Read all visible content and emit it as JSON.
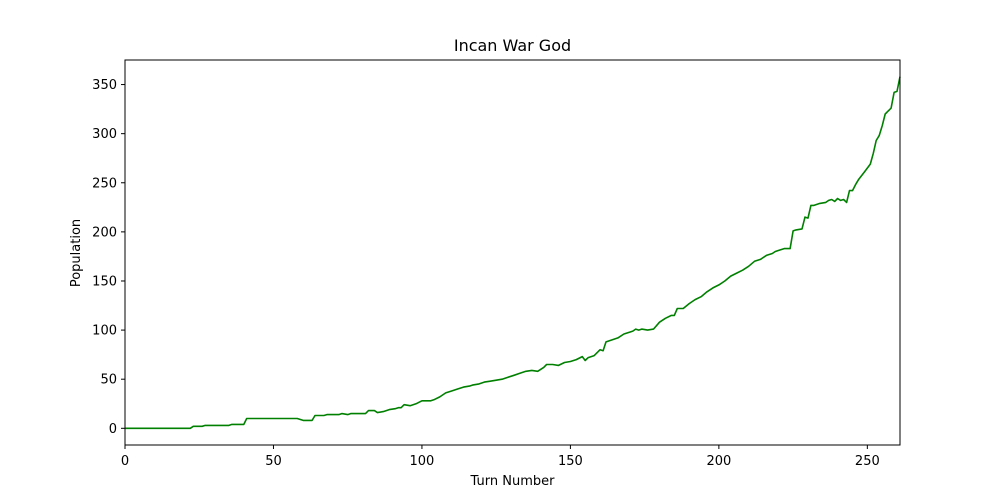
{
  "chart_data": {
    "type": "line",
    "title": "Incan War God",
    "xlabel": "Turn Number",
    "ylabel": "Population",
    "xlim": [
      0,
      261
    ],
    "ylim": [
      -17,
      375
    ],
    "xticks": [
      0,
      50,
      100,
      150,
      200,
      250
    ],
    "yticks": [
      0,
      50,
      100,
      150,
      200,
      250,
      300,
      350
    ],
    "grid": false,
    "legend": "none",
    "series": [
      {
        "color": "#008000",
        "x": [
          0,
          22,
          23,
          26,
          27,
          35,
          36,
          40,
          41,
          58,
          60,
          63,
          64,
          67,
          68,
          72,
          73,
          75,
          76,
          81,
          82,
          84,
          85,
          87,
          89,
          91,
          92,
          93,
          94,
          96,
          98,
          100,
          103,
          104,
          106,
          108,
          110,
          112,
          114,
          116,
          117,
          119,
          121,
          123,
          125,
          127,
          129,
          131,
          133,
          135,
          137,
          139,
          141,
          142,
          144,
          146,
          148,
          150,
          152,
          154,
          155,
          156,
          158,
          160,
          161,
          162,
          164,
          166,
          168,
          170,
          171,
          172,
          173,
          174,
          176,
          178,
          180,
          182,
          184,
          185,
          186,
          188,
          190,
          192,
          194,
          196,
          198,
          200,
          202,
          204,
          206,
          208,
          210,
          212,
          214,
          216,
          218,
          219,
          220,
          222,
          224,
          225,
          226,
          228,
          229,
          230,
          231,
          232,
          234,
          236,
          237,
          238,
          239,
          240,
          241,
          242,
          243,
          244,
          245,
          246,
          247,
          249,
          251,
          252,
          253,
          254,
          255,
          256,
          257,
          258,
          259,
          260,
          261
        ],
        "y": [
          0,
          0,
          2,
          2,
          3,
          3,
          4,
          4,
          10,
          10,
          8,
          8,
          13,
          13,
          14,
          14,
          15,
          14,
          15,
          15,
          18,
          18,
          16,
          17,
          19,
          20,
          21,
          21,
          24,
          23,
          25,
          28,
          28,
          29,
          32,
          36,
          38,
          40,
          42,
          43,
          44,
          45,
          47,
          48,
          49,
          50,
          52,
          54,
          56,
          58,
          59,
          58,
          62,
          65,
          65,
          64,
          67,
          68,
          70,
          73,
          69,
          72,
          74,
          80,
          79,
          88,
          90,
          92,
          96,
          98,
          99,
          101,
          100,
          101,
          100,
          101,
          108,
          112,
          115,
          115,
          122,
          122,
          127,
          131,
          134,
          139,
          143,
          146,
          150,
          155,
          158,
          161,
          165,
          170,
          172,
          176,
          178,
          180,
          181,
          183,
          183,
          201,
          202,
          203,
          215,
          214,
          227,
          227,
          229,
          230,
          232,
          233,
          231,
          234,
          232,
          233,
          230,
          242,
          242,
          248,
          253,
          261,
          269,
          280,
          293,
          298,
          308,
          320,
          323,
          326,
          342,
          343,
          358
        ]
      }
    ]
  }
}
